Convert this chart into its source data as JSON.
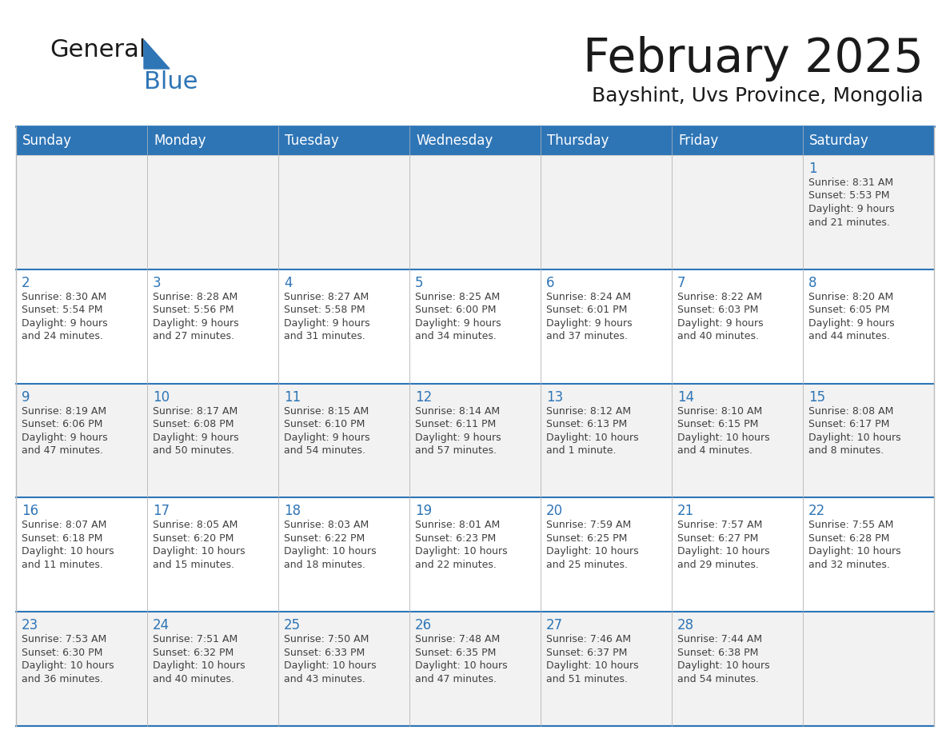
{
  "title": "February 2025",
  "subtitle": "Bayshint, Uvs Province, Mongolia",
  "header_bg": "#2E75B6",
  "header_text_color": "#FFFFFF",
  "cell_bg_odd": "#F2F2F2",
  "cell_bg_even": "#FFFFFF",
  "day_number_color": "#2E75B6",
  "cell_text_color": "#404040",
  "separator_color": "#2E75B6",
  "grid_color": "#BBBBBB",
  "days_of_week": [
    "Sunday",
    "Monday",
    "Tuesday",
    "Wednesday",
    "Thursday",
    "Friday",
    "Saturday"
  ],
  "weeks": [
    [
      {
        "day": "",
        "info": ""
      },
      {
        "day": "",
        "info": ""
      },
      {
        "day": "",
        "info": ""
      },
      {
        "day": "",
        "info": ""
      },
      {
        "day": "",
        "info": ""
      },
      {
        "day": "",
        "info": ""
      },
      {
        "day": "1",
        "info": "Sunrise: 8:31 AM\nSunset: 5:53 PM\nDaylight: 9 hours\nand 21 minutes."
      }
    ],
    [
      {
        "day": "2",
        "info": "Sunrise: 8:30 AM\nSunset: 5:54 PM\nDaylight: 9 hours\nand 24 minutes."
      },
      {
        "day": "3",
        "info": "Sunrise: 8:28 AM\nSunset: 5:56 PM\nDaylight: 9 hours\nand 27 minutes."
      },
      {
        "day": "4",
        "info": "Sunrise: 8:27 AM\nSunset: 5:58 PM\nDaylight: 9 hours\nand 31 minutes."
      },
      {
        "day": "5",
        "info": "Sunrise: 8:25 AM\nSunset: 6:00 PM\nDaylight: 9 hours\nand 34 minutes."
      },
      {
        "day": "6",
        "info": "Sunrise: 8:24 AM\nSunset: 6:01 PM\nDaylight: 9 hours\nand 37 minutes."
      },
      {
        "day": "7",
        "info": "Sunrise: 8:22 AM\nSunset: 6:03 PM\nDaylight: 9 hours\nand 40 minutes."
      },
      {
        "day": "8",
        "info": "Sunrise: 8:20 AM\nSunset: 6:05 PM\nDaylight: 9 hours\nand 44 minutes."
      }
    ],
    [
      {
        "day": "9",
        "info": "Sunrise: 8:19 AM\nSunset: 6:06 PM\nDaylight: 9 hours\nand 47 minutes."
      },
      {
        "day": "10",
        "info": "Sunrise: 8:17 AM\nSunset: 6:08 PM\nDaylight: 9 hours\nand 50 minutes."
      },
      {
        "day": "11",
        "info": "Sunrise: 8:15 AM\nSunset: 6:10 PM\nDaylight: 9 hours\nand 54 minutes."
      },
      {
        "day": "12",
        "info": "Sunrise: 8:14 AM\nSunset: 6:11 PM\nDaylight: 9 hours\nand 57 minutes."
      },
      {
        "day": "13",
        "info": "Sunrise: 8:12 AM\nSunset: 6:13 PM\nDaylight: 10 hours\nand 1 minute."
      },
      {
        "day": "14",
        "info": "Sunrise: 8:10 AM\nSunset: 6:15 PM\nDaylight: 10 hours\nand 4 minutes."
      },
      {
        "day": "15",
        "info": "Sunrise: 8:08 AM\nSunset: 6:17 PM\nDaylight: 10 hours\nand 8 minutes."
      }
    ],
    [
      {
        "day": "16",
        "info": "Sunrise: 8:07 AM\nSunset: 6:18 PM\nDaylight: 10 hours\nand 11 minutes."
      },
      {
        "day": "17",
        "info": "Sunrise: 8:05 AM\nSunset: 6:20 PM\nDaylight: 10 hours\nand 15 minutes."
      },
      {
        "day": "18",
        "info": "Sunrise: 8:03 AM\nSunset: 6:22 PM\nDaylight: 10 hours\nand 18 minutes."
      },
      {
        "day": "19",
        "info": "Sunrise: 8:01 AM\nSunset: 6:23 PM\nDaylight: 10 hours\nand 22 minutes."
      },
      {
        "day": "20",
        "info": "Sunrise: 7:59 AM\nSunset: 6:25 PM\nDaylight: 10 hours\nand 25 minutes."
      },
      {
        "day": "21",
        "info": "Sunrise: 7:57 AM\nSunset: 6:27 PM\nDaylight: 10 hours\nand 29 minutes."
      },
      {
        "day": "22",
        "info": "Sunrise: 7:55 AM\nSunset: 6:28 PM\nDaylight: 10 hours\nand 32 minutes."
      }
    ],
    [
      {
        "day": "23",
        "info": "Sunrise: 7:53 AM\nSunset: 6:30 PM\nDaylight: 10 hours\nand 36 minutes."
      },
      {
        "day": "24",
        "info": "Sunrise: 7:51 AM\nSunset: 6:32 PM\nDaylight: 10 hours\nand 40 minutes."
      },
      {
        "day": "25",
        "info": "Sunrise: 7:50 AM\nSunset: 6:33 PM\nDaylight: 10 hours\nand 43 minutes."
      },
      {
        "day": "26",
        "info": "Sunrise: 7:48 AM\nSunset: 6:35 PM\nDaylight: 10 hours\nand 47 minutes."
      },
      {
        "day": "27",
        "info": "Sunrise: 7:46 AM\nSunset: 6:37 PM\nDaylight: 10 hours\nand 51 minutes."
      },
      {
        "day": "28",
        "info": "Sunrise: 7:44 AM\nSunset: 6:38 PM\nDaylight: 10 hours\nand 54 minutes."
      },
      {
        "day": "",
        "info": ""
      }
    ]
  ]
}
